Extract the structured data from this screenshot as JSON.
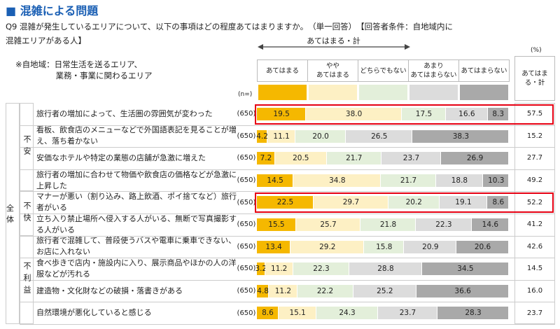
{
  "chart_data": {
    "type": "stacked-bar",
    "title": "■ 混雑による問題",
    "question": "Q9 混雑が発生しているエリアについて、以下の事項はどの程度あてはまりますか。　（単一回答）　【回答者条件：自地域内に混雑エリアがある人】",
    "note": "※自地域：日常生活を送るエリア、\n　　　　　業務・事業に関わるエリア",
    "arrow_label": "あてはまる・計",
    "unit_label": "(%)",
    "n_header": "(n=)",
    "segment_label": "全体",
    "groups": [
      {
        "label": "不安",
        "categories": [
          "旅行者の増加によって、生活圏の雰囲気が変わった",
          "看板、飲食店のメニューなどで外国語表記を見ることが増え、落ち着かない",
          "安価なホテルや特定の業態の店舗が急激に増えた",
          "旅行者の増加に合わせて物価や飲食店の価格などが急激に上昇した"
        ]
      },
      {
        "label": "不快",
        "categories": [
          "マナーが悪い（割り込み、路上飲酒、ポイ捨てなど）旅行者がいる",
          "立ち入り禁止場所へ侵入する人がいる、無断で写真撮影する人がいる"
        ]
      },
      {
        "label": "不利益",
        "categories": [
          "旅行者で混雑して、普段使うバスや電車に乗車できない、お店に入れない",
          "食べ歩きで店内・施設内に入り、展示商品やほかの人の洋服などが汚れる",
          "建造物・文化財などの破損・落書きがある",
          "自然環境が悪化していると感じる"
        ]
      }
    ],
    "n": [
      "(650)",
      "(650)",
      "(650)",
      "(650)",
      "(650)",
      "(650)",
      "(650)",
      "(650)",
      "(650)",
      "(650)"
    ],
    "xlim": [
      0,
      100
    ],
    "series": [
      {
        "name": "あてはまる",
        "color": "#f5b800",
        "values": [
          19.5,
          4.2,
          7.2,
          14.5,
          22.5,
          15.5,
          13.4,
          3.2,
          4.8,
          8.6
        ],
        "value_labels": [
          "19.5",
          "4.2",
          "7.2",
          "14.5",
          "22.5",
          "15.5",
          "13.4",
          "3.2",
          "4.8",
          "8.6"
        ]
      },
      {
        "name": "やや\nあてはまる",
        "color": "#fdf0c4",
        "values": [
          38.0,
          11.1,
          20.5,
          34.8,
          29.7,
          25.7,
          29.2,
          11.2,
          11.2,
          15.1
        ],
        "value_labels": [
          "38.0",
          "11.1",
          "20.5",
          "34.8",
          "29.7",
          "25.7",
          "29.2",
          "11.2",
          "11.2",
          "15.1"
        ]
      },
      {
        "name": "どちらでもない",
        "color": "#e3efda",
        "values": [
          17.5,
          20.0,
          21.7,
          21.7,
          20.2,
          21.8,
          15.8,
          22.3,
          22.2,
          24.3
        ],
        "value_labels": [
          "17.5",
          "20.0",
          "21.7",
          "21.7",
          "20.2",
          "21.8",
          "15.8",
          "22.3",
          "22.2",
          "24.3"
        ]
      },
      {
        "name": "あまり\nあてはまらない",
        "color": "#dcdcdc",
        "values": [
          16.6,
          26.5,
          23.7,
          18.8,
          19.1,
          22.3,
          20.9,
          28.8,
          25.2,
          23.7
        ],
        "value_labels": [
          "16.6",
          "26.5",
          "23.7",
          "18.8",
          "19.1",
          "22.3",
          "20.9",
          "28.8",
          "25.2",
          "23.7"
        ]
      },
      {
        "name": "あてはまらない",
        "color": "#a9a9a9",
        "values": [
          8.3,
          38.3,
          26.9,
          10.3,
          8.6,
          14.6,
          20.6,
          34.5,
          36.6,
          28.3
        ],
        "value_labels": [
          "8.3",
          "38.3",
          "26.9",
          "10.3",
          "8.6",
          "14.6",
          "20.6",
          "34.5",
          "36.6",
          "28.3"
        ]
      }
    ],
    "totals": {
      "name": "あてはまる・計",
      "values": [
        57.5,
        15.2,
        27.7,
        49.2,
        52.2,
        41.2,
        42.6,
        14.5,
        16.0,
        23.7
      ],
      "value_labels": [
        "57.5",
        "15.2",
        "27.7",
        "49.2",
        "52.2",
        "41.2",
        "42.6",
        "14.5",
        "16.0",
        "23.7"
      ]
    },
    "highlight_rows": [
      0,
      4
    ],
    "highlight_color": "#e60012"
  }
}
